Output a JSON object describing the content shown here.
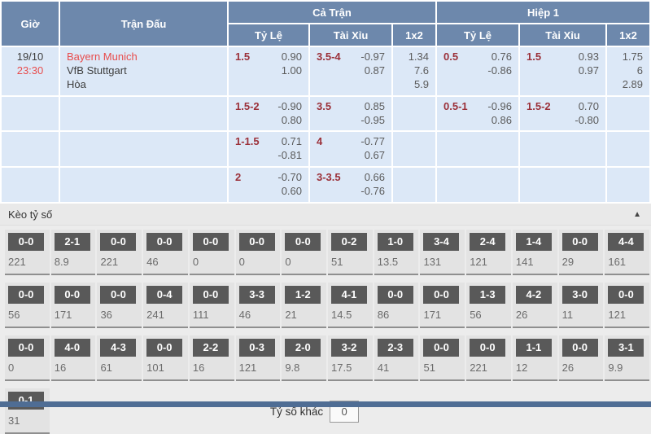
{
  "header": {
    "time": "Giờ",
    "match": "Trận Đấu",
    "full_match": "Cả Trận",
    "first_half": "Hiệp 1",
    "handicap": "Tỷ Lệ",
    "over_under": "Tài Xỉu",
    "one_x_two": "1x2"
  },
  "match": {
    "date": "19/10",
    "time": "23:30",
    "home": "Bayern Munich",
    "away": "VfB Stuttgart",
    "draw": "Hòa"
  },
  "odds_rows": [
    {
      "ft_hdp": {
        "line": "1.5",
        "odds": [
          "0.90",
          "1.00"
        ]
      },
      "ft_ou": {
        "line": "3.5-4",
        "odds": [
          "-0.97",
          "0.87"
        ]
      },
      "ft_1x2": [
        "1.34",
        "7.6",
        "5.9"
      ],
      "h1_hdp": {
        "line": "0.5",
        "odds": [
          "0.76",
          "-0.86"
        ]
      },
      "h1_ou": {
        "line": "1.5",
        "odds": [
          "0.93",
          "0.97"
        ]
      },
      "h1_1x2": [
        "1.75",
        "6",
        "2.89"
      ]
    },
    {
      "ft_hdp": {
        "line": "1.5-2",
        "odds": [
          "-0.90",
          "0.80"
        ]
      },
      "ft_ou": {
        "line": "3.5",
        "odds": [
          "0.85",
          "-0.95"
        ]
      },
      "h1_hdp": {
        "line": "0.5-1",
        "odds": [
          "-0.96",
          "0.86"
        ]
      },
      "h1_ou": {
        "line": "1.5-2",
        "odds": [
          "0.70",
          "-0.80"
        ]
      }
    },
    {
      "ft_hdp": {
        "line": "1-1.5",
        "odds": [
          "0.71",
          "-0.81"
        ]
      },
      "ft_ou": {
        "line": "4",
        "odds": [
          "-0.77",
          "0.67"
        ]
      }
    },
    {
      "ft_hdp": {
        "line": "2",
        "odds": [
          "-0.70",
          "0.60"
        ]
      },
      "ft_ou": {
        "line": "3-3.5",
        "odds": [
          "0.66",
          "-0.76"
        ]
      }
    }
  ],
  "score_section": {
    "title": "Kèo tỷ số",
    "collapse_icon": "▲",
    "other_score_label": "Tỷ số khác",
    "other_score_value": "0",
    "rows": [
      [
        {
          "score": "0-0",
          "odds": "221"
        },
        {
          "score": "2-1",
          "odds": "8.9"
        },
        {
          "score": "0-0",
          "odds": "221"
        },
        {
          "score": "0-0",
          "odds": "46"
        },
        {
          "score": "0-0",
          "odds": "0"
        },
        {
          "score": "0-0",
          "odds": "0"
        },
        {
          "score": "0-0",
          "odds": "0"
        },
        {
          "score": "0-2",
          "odds": "51"
        },
        {
          "score": "1-0",
          "odds": "13.5"
        },
        {
          "score": "3-4",
          "odds": "131"
        },
        {
          "score": "2-4",
          "odds": "121"
        },
        {
          "score": "1-4",
          "odds": "141"
        },
        {
          "score": "0-0",
          "odds": "29"
        },
        {
          "score": "4-4",
          "odds": "161"
        }
      ],
      [
        {
          "score": "0-0",
          "odds": "56"
        },
        {
          "score": "0-0",
          "odds": "171"
        },
        {
          "score": "0-0",
          "odds": "36"
        },
        {
          "score": "0-4",
          "odds": "241"
        },
        {
          "score": "0-0",
          "odds": "111"
        },
        {
          "score": "3-3",
          "odds": "46"
        },
        {
          "score": "1-2",
          "odds": "21"
        },
        {
          "score": "4-1",
          "odds": "14.5"
        },
        {
          "score": "0-0",
          "odds": "86"
        },
        {
          "score": "0-0",
          "odds": "171"
        },
        {
          "score": "1-3",
          "odds": "56"
        },
        {
          "score": "4-2",
          "odds": "26"
        },
        {
          "score": "3-0",
          "odds": "11"
        },
        {
          "score": "0-0",
          "odds": "121"
        }
      ],
      [
        {
          "score": "0-0",
          "odds": "0"
        },
        {
          "score": "4-0",
          "odds": "16"
        },
        {
          "score": "4-3",
          "odds": "61"
        },
        {
          "score": "0-0",
          "odds": "101"
        },
        {
          "score": "2-2",
          "odds": "16"
        },
        {
          "score": "0-3",
          "odds": "121"
        },
        {
          "score": "2-0",
          "odds": "9.8"
        },
        {
          "score": "3-2",
          "odds": "17.5"
        },
        {
          "score": "2-3",
          "odds": "41"
        },
        {
          "score": "0-0",
          "odds": "51"
        },
        {
          "score": "0-0",
          "odds": "221"
        },
        {
          "score": "1-1",
          "odds": "12"
        },
        {
          "score": "0-0",
          "odds": "26"
        },
        {
          "score": "3-1",
          "odds": "9.9"
        }
      ],
      [
        {
          "score": "0-1",
          "odds": "31"
        }
      ]
    ]
  },
  "colors": {
    "header_bg": "#6d88ac",
    "row_bg": "#dce8f7",
    "highlight_red": "#e84c4c",
    "handicap_red": "#9b3039",
    "score_button_bg": "#595959",
    "bottom_bar": "#4f6d94"
  }
}
